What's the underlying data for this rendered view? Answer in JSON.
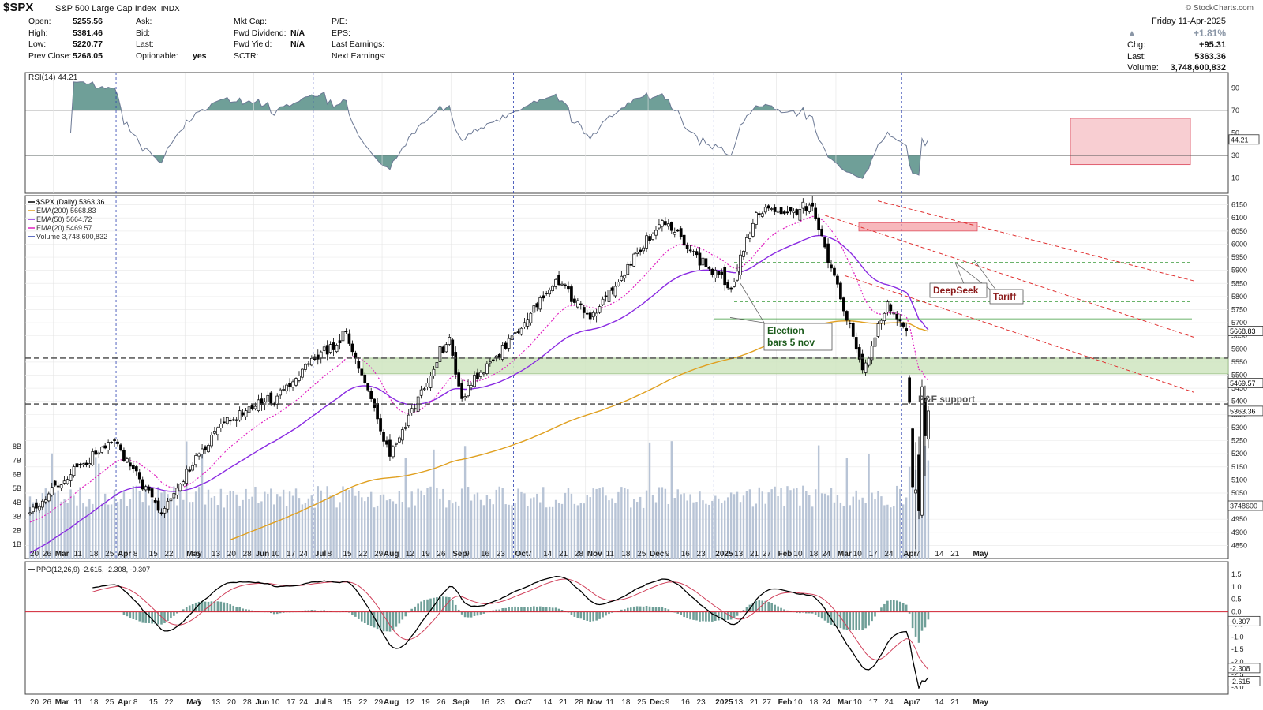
{
  "header": {
    "symbol": "$SPX",
    "name": "S&P 500 Large Cap Index",
    "exchange": "INDX",
    "brand": "© StockCharts.com"
  },
  "stats": {
    "open_label": "Open:",
    "open": "5255.56",
    "high_label": "High:",
    "high": "5381.46",
    "low_label": "Low:",
    "low": "5220.77",
    "prev_label": "Prev Close:",
    "prev": "5268.05",
    "ask_label": "Ask:",
    "bid_label": "Bid:",
    "last_label": "Last:",
    "optionable_label": "Optionable:",
    "optionable": "yes",
    "mktcap_label": "Mkt Cap:",
    "fwddiv_label": "Fwd Dividend:",
    "fwddiv": "N/A",
    "fwdyield_label": "Fwd Yield:",
    "fwdyield": "N/A",
    "sctr_label": "SCTR:",
    "pe_label": "P/E:",
    "eps_label": "EPS:",
    "lastearn_label": "Last Earnings:",
    "nextearn_label": "Next Earnings:"
  },
  "quote": {
    "date": "Friday  11-Apr-2025",
    "pct": "+1.81%",
    "chg_label": "Chg:",
    "chg": "+95.31",
    "last_label": "Last:",
    "last": "5363.36",
    "volume_label": "Volume:",
    "volume": "3,748,600,832"
  },
  "colors": {
    "ema200": "#e0a020",
    "ema50": "#8a2be2",
    "ema20": "#e020c0",
    "volume": "#b8c4d6",
    "rsi": "#6b7894",
    "rsi_fill": "#6f9f98",
    "ppo": "#000000",
    "ppo_signal": "#d0405a",
    "ppo_hist": "#6f9f98",
    "channel": "#e03030",
    "support_zone": "#cfe5c0"
  },
  "rsi_panel": {
    "legend": "RSI(14) 44.21",
    "current": "44.21",
    "levels": [
      "90",
      "70",
      "50",
      "30",
      "10"
    ]
  },
  "price_panel": {
    "legend_main": "$SPX (Daily) 5363.36",
    "legend_ema200": "EMA(200) 5668.83",
    "legend_ema50": "EMA(50) 5664.72",
    "legend_ema20": "EMA(20) 5469.57",
    "legend_volume": "Volume 3,748,600,832",
    "tag_ema200": "5668.83",
    "tag_ema20": "5469.57",
    "tag_last": "5363.36",
    "tag_volume": "3748600",
    "y_ticks": [
      "6150",
      "6100",
      "6050",
      "6000",
      "5950",
      "5900",
      "5850",
      "5800",
      "5750",
      "5700",
      "5650",
      "5600",
      "5550",
      "5500",
      "5450",
      "5400",
      "5350",
      "5300",
      "5250",
      "5200",
      "5150",
      "5100",
      "5050",
      "5000",
      "4950",
      "4900",
      "4850"
    ],
    "vol_ticks": [
      "8B",
      "7B",
      "6B",
      "5B",
      "4B",
      "3B",
      "2B",
      "1B"
    ]
  },
  "annotations": {
    "election": [
      "Election",
      "bars 5 nov"
    ],
    "deepseek": "DeepSeek",
    "tariff": "Tariff",
    "pf_support": "P&F support"
  },
  "ppo_panel": {
    "legend": "PPO(12,26,9) -2.615, -2.308, -0.307",
    "y_ticks": [
      "1.5",
      "1.0",
      "0.5",
      "0.0",
      "-0.5",
      "-1.0",
      "-1.5",
      "-2.0",
      "-2.5",
      "-3.0"
    ],
    "tag_hist": "-0.307",
    "tag_signal": "-2.308",
    "tag_ppo": "-2.615"
  },
  "x_axis": {
    "labels": [
      "20",
      "26",
      "Mar",
      "11",
      "18",
      "25",
      "Apr",
      "8",
      "15",
      "22",
      "May",
      "6",
      "13",
      "20",
      "28",
      "Jun",
      "10",
      "17",
      "24",
      "Jul",
      "8",
      "15",
      "22",
      "29",
      "Aug",
      "12",
      "19",
      "26",
      "Sep",
      "9",
      "16",
      "23",
      "Oct",
      "7",
      "14",
      "21",
      "28",
      "Nov",
      "11",
      "18",
      "25",
      "Dec",
      "9",
      "16",
      "23",
      "2025",
      "13",
      "21",
      "27",
      "Feb",
      "10",
      "18",
      "24",
      "Mar",
      "10",
      "17",
      "24",
      "Apr",
      "7",
      "14",
      "21",
      "May"
    ],
    "bold": [
      "Mar",
      "Apr",
      "May",
      "Jun",
      "Jul",
      "Aug",
      "Sep",
      "Oct",
      "Nov",
      "Dec",
      "2025",
      "Feb"
    ]
  },
  "chart_data": {
    "type": "candlestick",
    "title": "$SPX (Daily) 5363.36",
    "frequency": "daily",
    "period": [
      "2024-02-20",
      "2025-04-11"
    ],
    "ylim": [
      4800,
      6180
    ],
    "anchors": [
      {
        "date": "2024-02-20",
        "close": 4975
      },
      {
        "date": "2024-03-08",
        "close": 5120
      },
      {
        "date": "2024-03-28",
        "close": 5250
      },
      {
        "date": "2024-04-19",
        "close": 4970
      },
      {
        "date": "2024-05-15",
        "close": 5300
      },
      {
        "date": "2024-06-12",
        "close": 5420
      },
      {
        "date": "2024-07-16",
        "close": 5665
      },
      {
        "date": "2024-08-05",
        "close": 5190
      },
      {
        "date": "2024-08-30",
        "close": 5645
      },
      {
        "date": "2024-09-06",
        "close": 5410
      },
      {
        "date": "2024-10-18",
        "close": 5865
      },
      {
        "date": "2024-11-04",
        "close": 5715
      },
      {
        "date": "2024-12-06",
        "close": 6090
      },
      {
        "date": "2025-01-10",
        "close": 5830
      },
      {
        "date": "2025-01-23",
        "close": 6120
      },
      {
        "date": "2025-02-19",
        "close": 6145
      },
      {
        "date": "2025-03-13",
        "close": 5520
      },
      {
        "date": "2025-03-25",
        "close": 5780
      },
      {
        "date": "2025-04-02",
        "close": 5670
      },
      {
        "date": "2025-04-04",
        "close": 5075
      },
      {
        "date": "2025-04-08",
        "close": 4980
      },
      {
        "date": "2025-04-09",
        "close": 5455
      },
      {
        "date": "2025-04-11",
        "close": 5363
      }
    ],
    "last_bar": {
      "open": 5255.56,
      "high": 5381.46,
      "low": 5220.77,
      "close": 5363.36
    },
    "support_zone": [
      5505,
      5565
    ],
    "pf_support": 5390,
    "resistance_line": 5565,
    "series": [
      {
        "name": "EMA(200)",
        "last": 5668.83
      },
      {
        "name": "EMA(50)",
        "last": 5664.72
      },
      {
        "name": "EMA(20)",
        "last": 5469.57
      }
    ],
    "rsi_last": 44.21,
    "ppo_last": {
      "ppo": -2.615,
      "signal": -2.308,
      "histogram": -0.307
    }
  }
}
